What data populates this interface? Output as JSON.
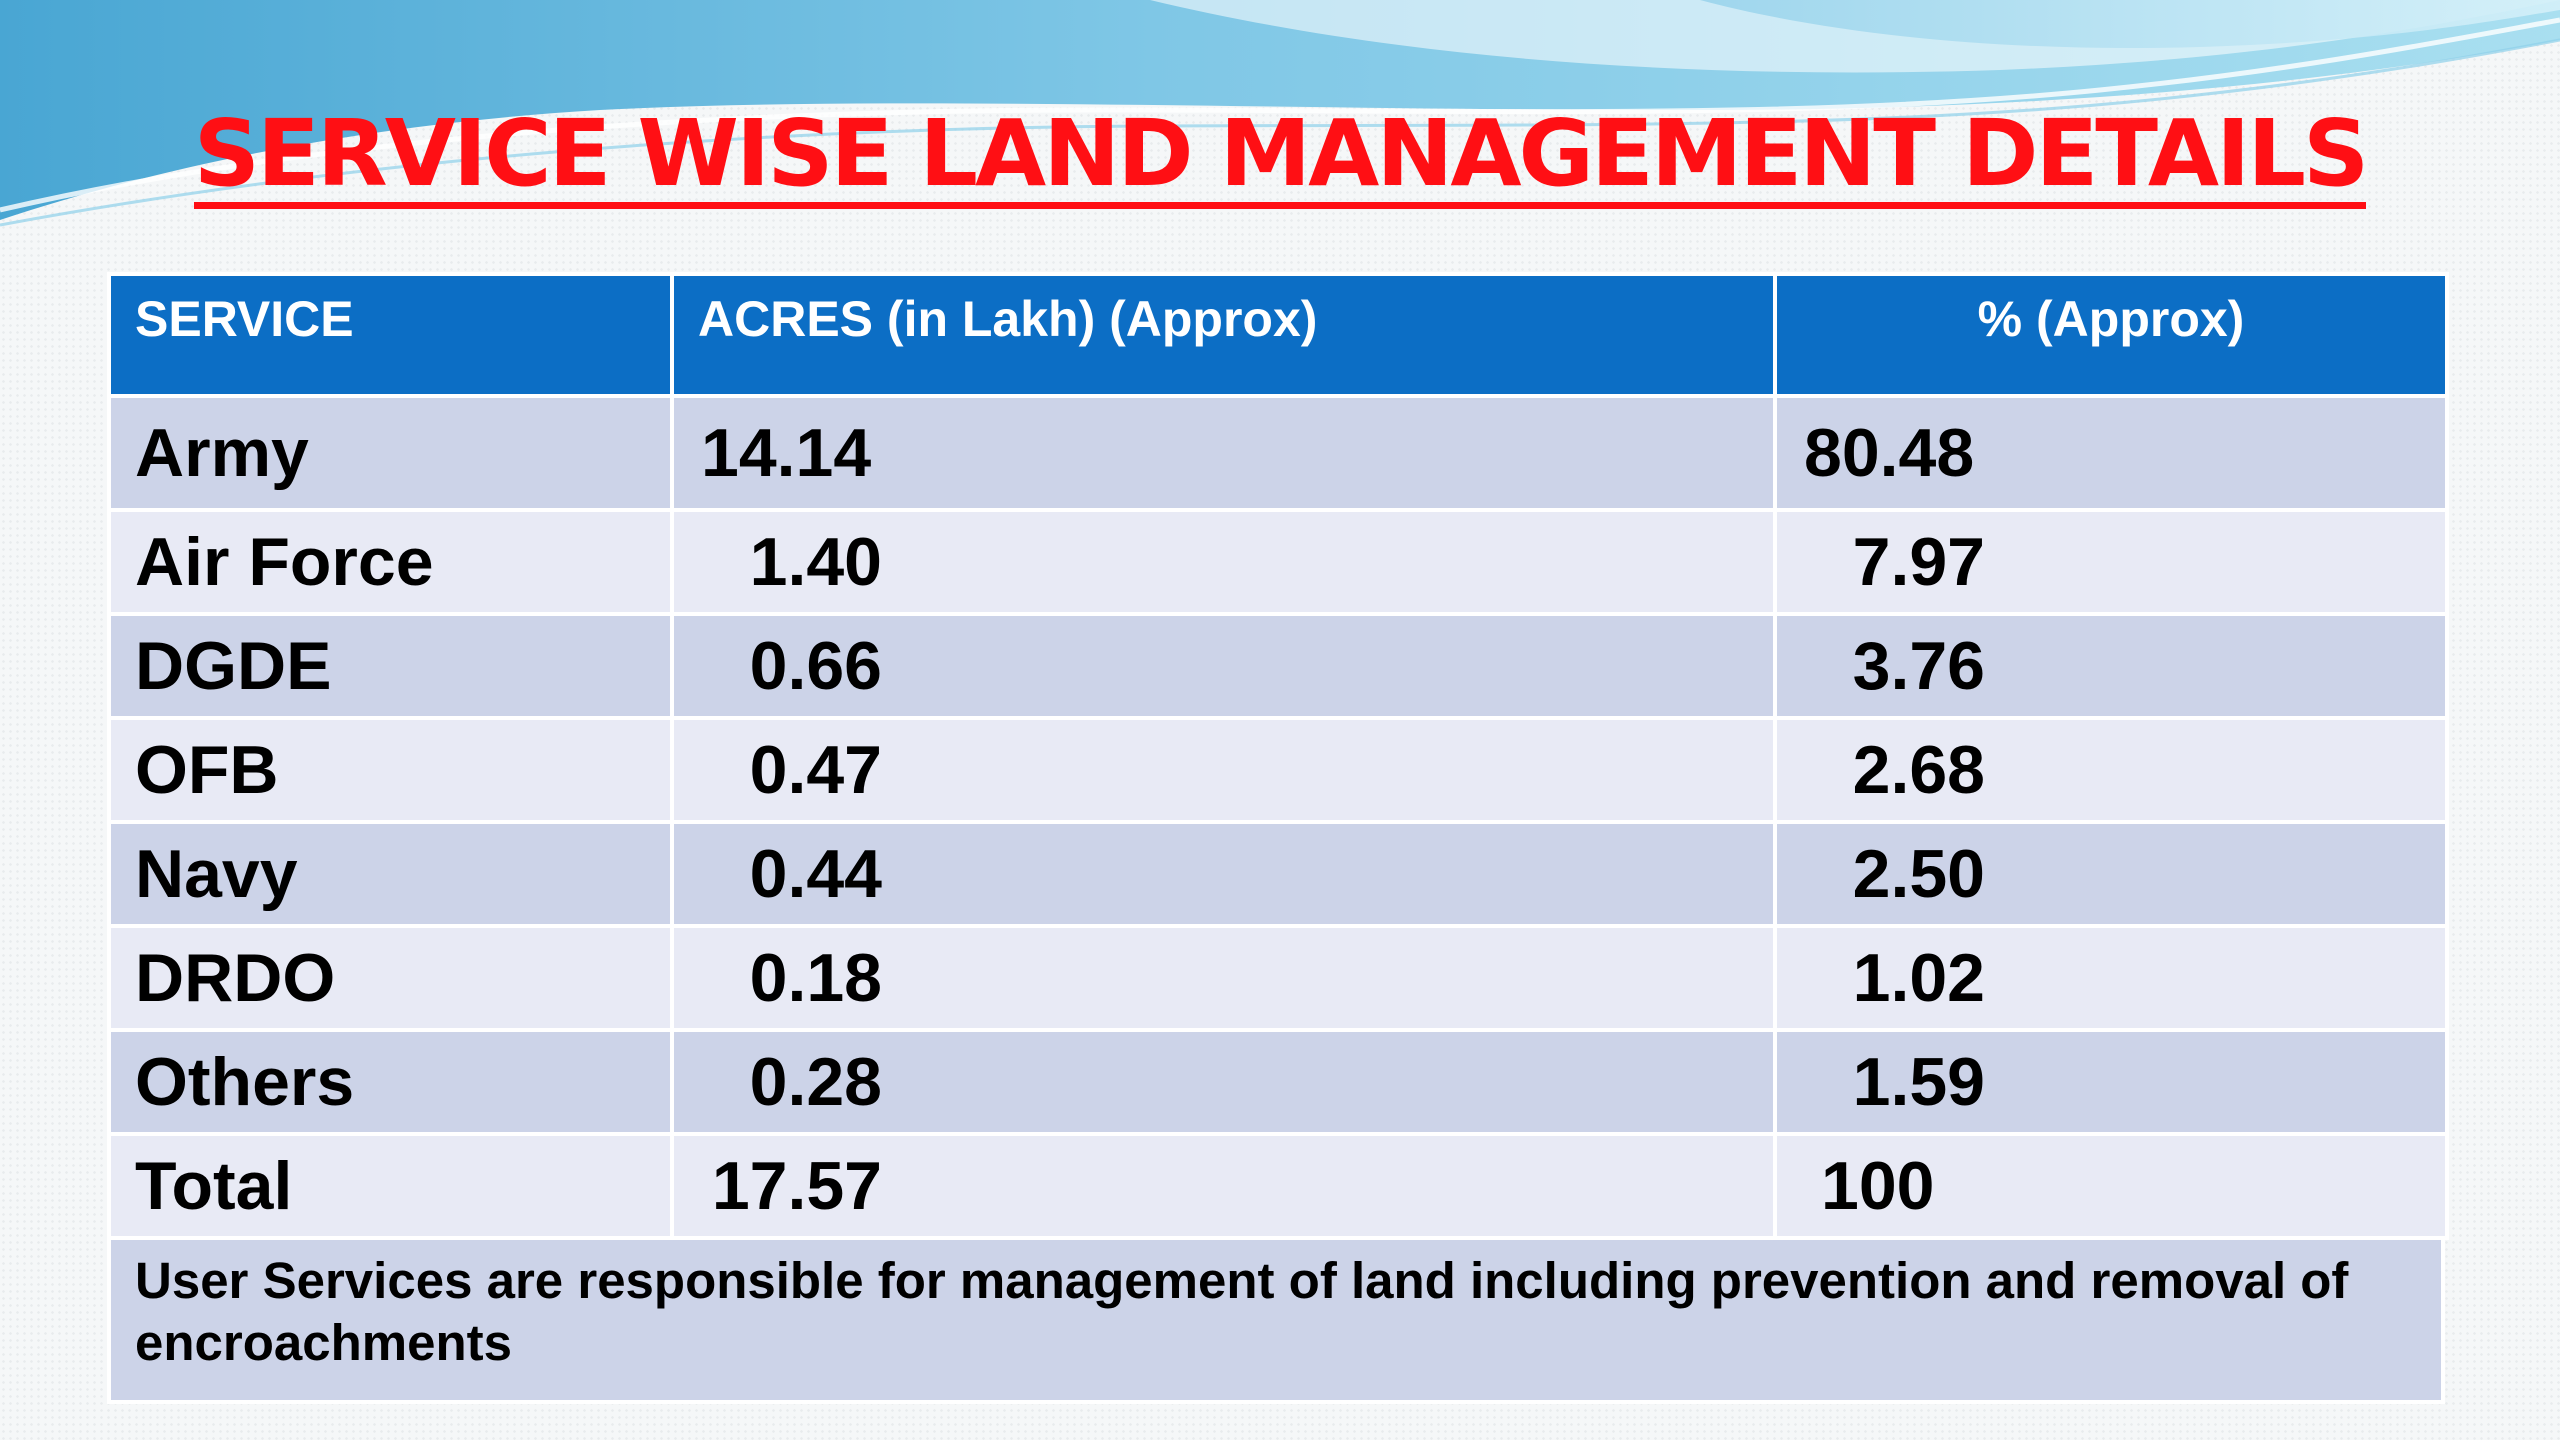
{
  "title": "SERVICE WISE LAND MANAGEMENT DETAILS",
  "table": {
    "headers": {
      "service": "SERVICE",
      "acres": "ACRES (in Lakh) (Approx)",
      "percent": "% (Approx)"
    },
    "rows": [
      {
        "service": "Army",
        "acres": "14.14",
        "percent": "80.48"
      },
      {
        "service": "Air Force",
        "acres": "1.40",
        "percent": "7.97"
      },
      {
        "service": "DGDE",
        "acres": "0.66",
        "percent": "3.76"
      },
      {
        "service": "OFB",
        "acres": "0.47",
        "percent": "2.68"
      },
      {
        "service": "Navy",
        "acres": "0.44",
        "percent": "2.50"
      },
      {
        "service": "DRDO",
        "acres": "0.18",
        "percent": "1.02"
      },
      {
        "service": "Others",
        "acres": "0.28",
        "percent": "1.59"
      },
      {
        "service": "Total",
        "acres": "17.57",
        "percent": "100"
      }
    ],
    "note": "User Services are responsible for management of land including prevention and removal of encroachments"
  },
  "colors": {
    "title": "#ff0f14",
    "header_bg": "#0c6ec5",
    "row_dark": "#ccd3e8",
    "row_light": "#e8eaf5",
    "swoosh": "#5fb4d9"
  }
}
